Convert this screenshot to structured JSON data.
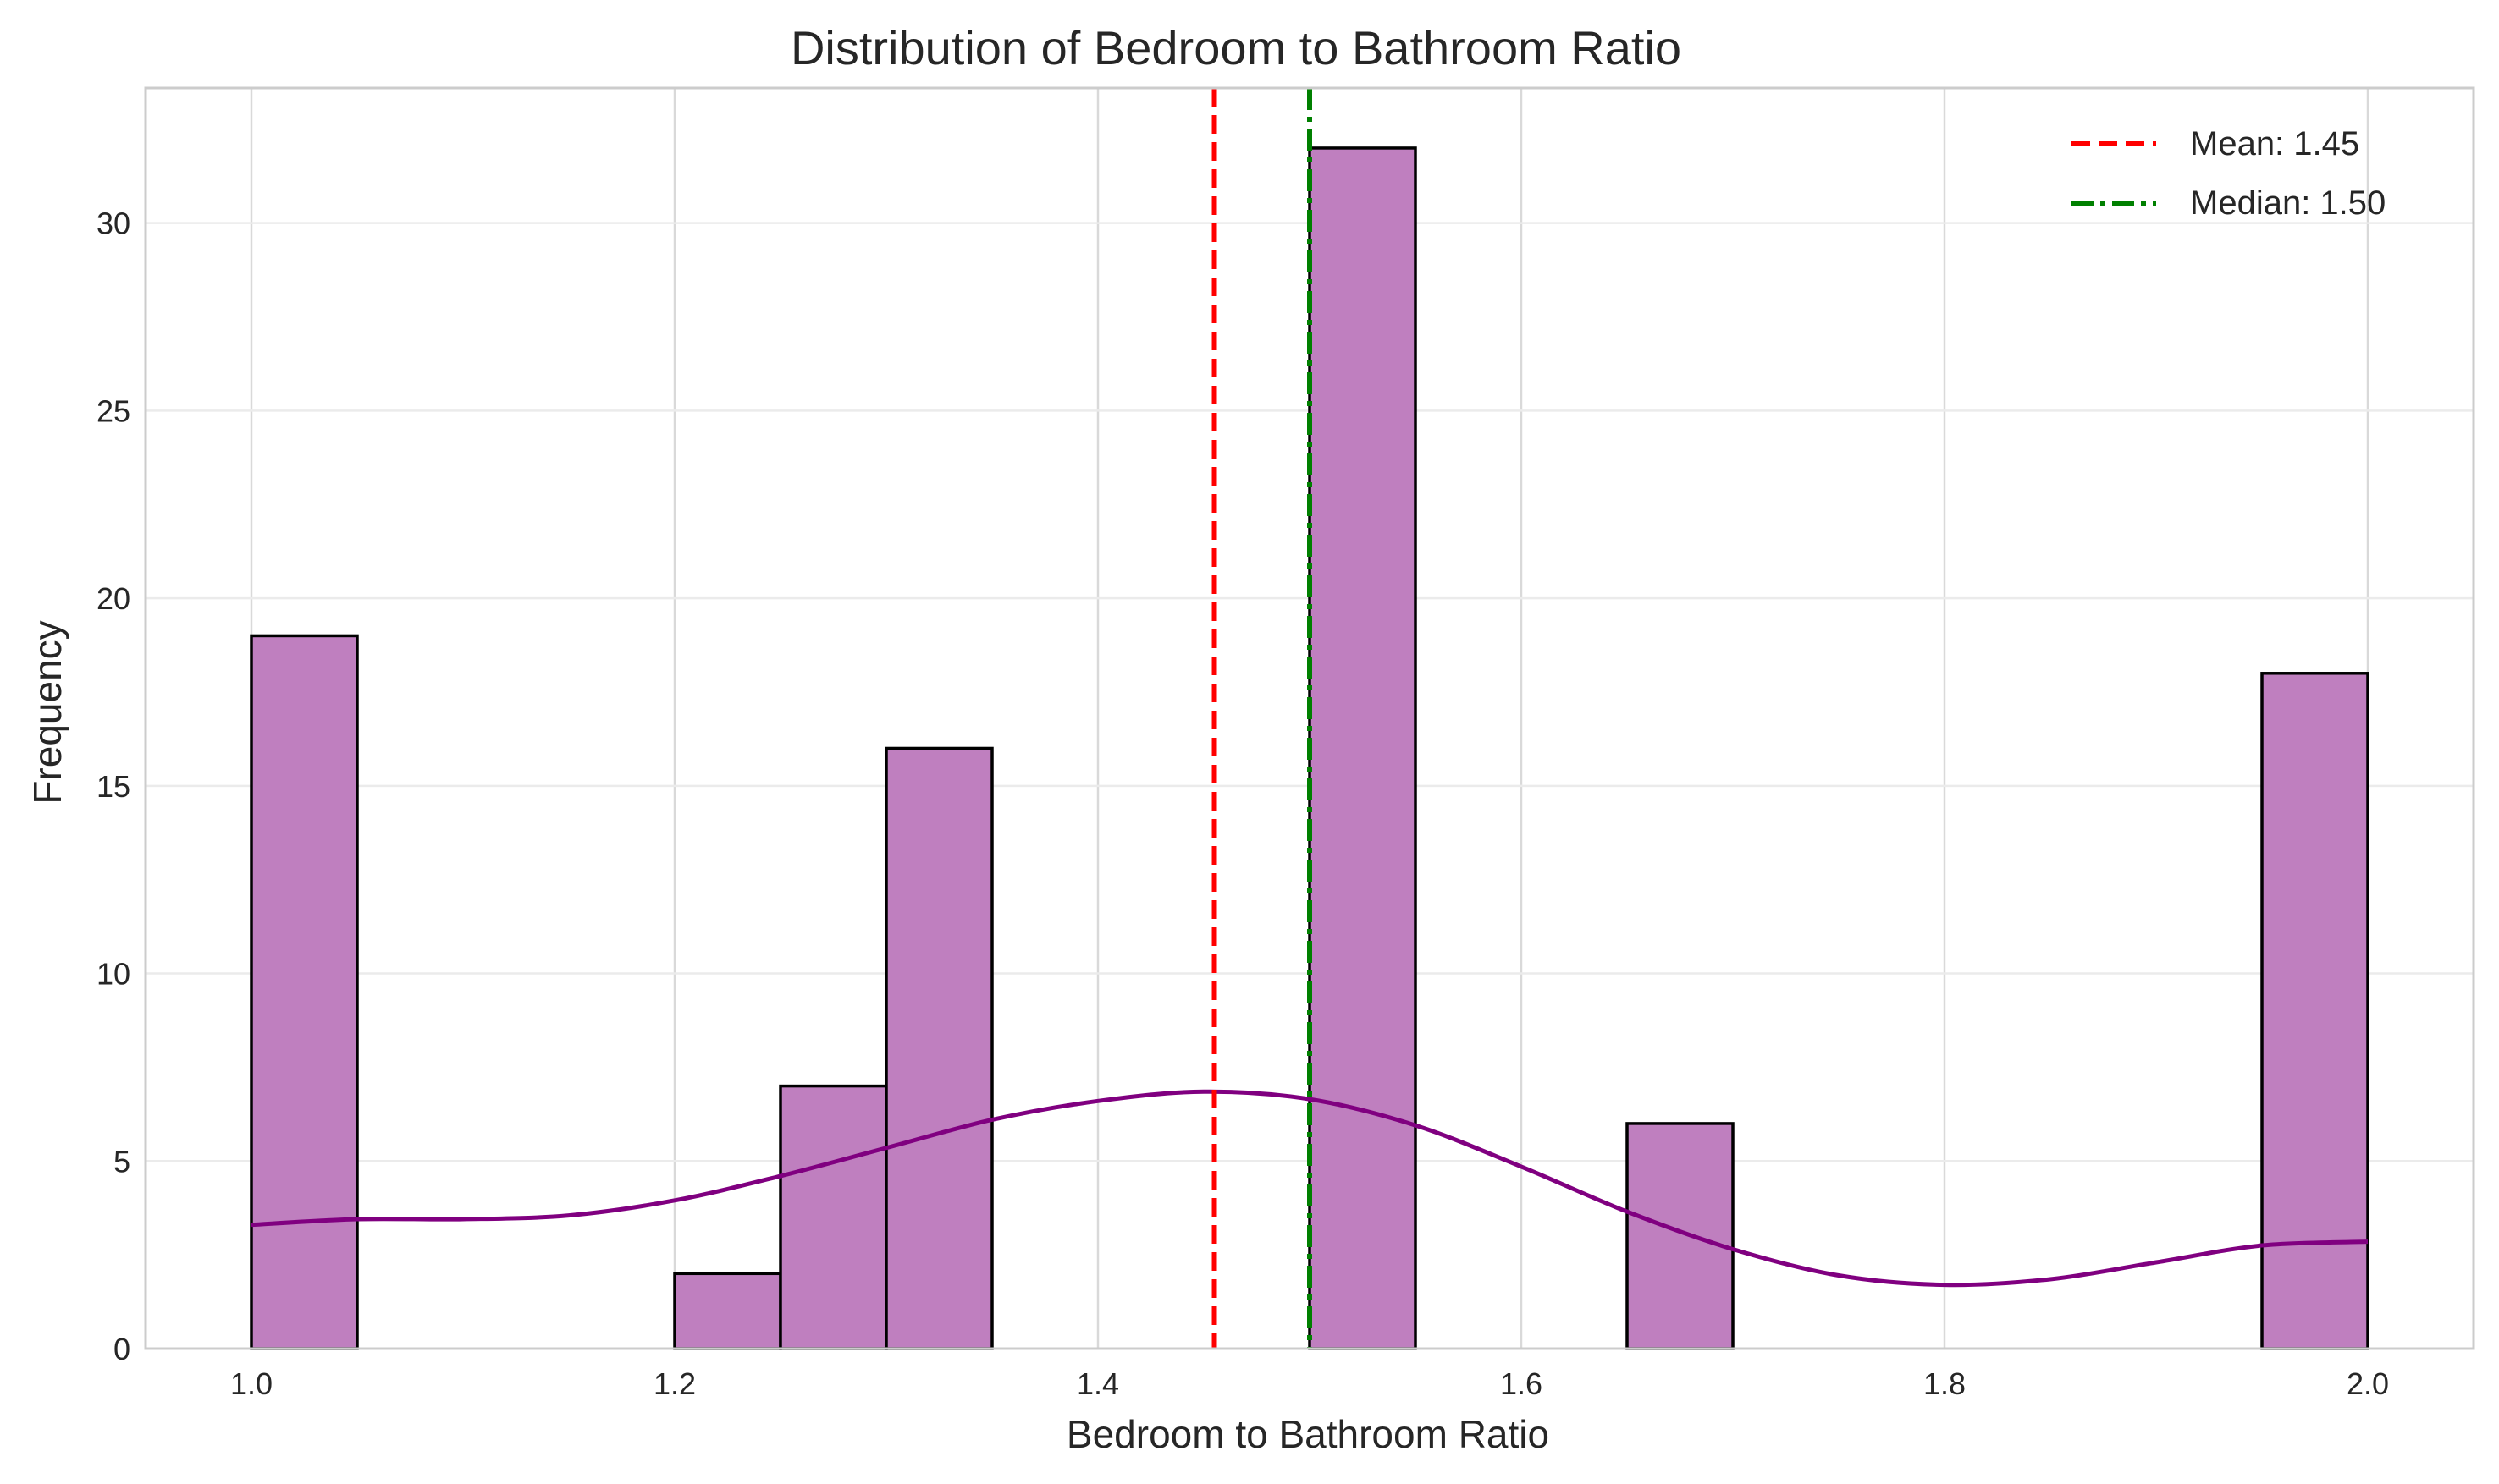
{
  "chart_data": {
    "type": "bar",
    "title": "Distribution of Bedroom to Bathroom Ratio",
    "xlabel": "Bedroom to Bathroom Ratio",
    "ylabel": "Frequency",
    "xlim": [
      0.95,
      2.05
    ],
    "ylim": [
      0,
      33.6
    ],
    "xticks": [
      1.0,
      1.2,
      1.4,
      1.6,
      1.8,
      2.0
    ],
    "xtick_labels": [
      "1.0",
      "1.2",
      "1.4",
      "1.6",
      "1.8",
      "2.0"
    ],
    "yticks": [
      0,
      5,
      10,
      15,
      20,
      25,
      30
    ],
    "ytick_labels": [
      "0",
      "5",
      "10",
      "15",
      "20",
      "25",
      "30"
    ],
    "grid": true,
    "bins": [
      {
        "x0": 1.0,
        "x1": 1.05,
        "count": 19
      },
      {
        "x0": 1.2,
        "x1": 1.25,
        "count": 2
      },
      {
        "x0": 1.25,
        "x1": 1.3,
        "count": 7
      },
      {
        "x0": 1.3,
        "x1": 1.35,
        "count": 16
      },
      {
        "x0": 1.5,
        "x1": 1.55,
        "count": 32
      },
      {
        "x0": 1.65,
        "x1": 1.7,
        "count": 6
      },
      {
        "x0": 1.95,
        "x1": 2.0,
        "count": 18
      }
    ],
    "kde": {
      "x": [
        1.0,
        1.05,
        1.1,
        1.15,
        1.2,
        1.25,
        1.3,
        1.35,
        1.4,
        1.45,
        1.5,
        1.55,
        1.6,
        1.65,
        1.7,
        1.75,
        1.8,
        1.85,
        1.9,
        1.95,
        2.0
      ],
      "y": [
        3.3,
        3.45,
        3.45,
        3.55,
        3.95,
        4.6,
        5.35,
        6.1,
        6.6,
        6.85,
        6.65,
        5.95,
        4.85,
        3.65,
        2.65,
        1.95,
        1.7,
        1.85,
        2.3,
        2.75,
        2.85
      ]
    },
    "reference_lines": [
      {
        "name": "Mean: 1.45",
        "x": 1.455,
        "color": "#ff0000",
        "style": "dashed"
      },
      {
        "name": "Median: 1.50",
        "x": 1.5,
        "color": "#008000",
        "style": "dashdot"
      }
    ],
    "legend_position": "top-right",
    "colors": {
      "bar_fill": "#bf7fbf",
      "bar_edge": "#000000",
      "kde_line": "#800080",
      "grid": "#d9d9d9",
      "axes_edge": "#cccccc"
    }
  }
}
